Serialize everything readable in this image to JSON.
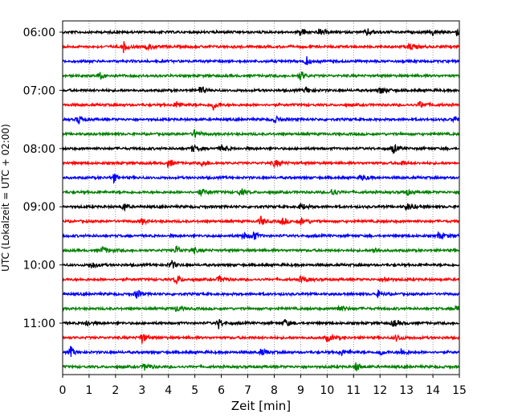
{
  "chart_data": {
    "type": "line",
    "title": "",
    "xlabel": "Zeit  [min]",
    "ylabel": "UTC (Lokalzeit = UTC + 02:00)",
    "xlim": [
      0,
      15
    ],
    "x_ticks": [
      0,
      1,
      2,
      3,
      4,
      5,
      6,
      7,
      8,
      9,
      10,
      11,
      12,
      13,
      14,
      15
    ],
    "x_tick_labels": [
      "0",
      "1",
      "2",
      "3",
      "4",
      "5",
      "6",
      "7",
      "8",
      "9",
      "10",
      "11",
      "12",
      "13",
      "14",
      "15"
    ],
    "y_tick_labels": [
      "06:00",
      "07:00",
      "08:00",
      "09:00",
      "10:00",
      "11:00"
    ],
    "trace_interval_min": 15,
    "first_trace": "06:00",
    "trace_count": 24,
    "grid": "vertical dotted",
    "color_cycle": [
      "#000000",
      "#ff0000",
      "#0000ff",
      "#008000"
    ],
    "series": [
      {
        "start": "06:00",
        "events_min": [
          9.0,
          9.7,
          11.5,
          14.0,
          14.9
        ]
      },
      {
        "start": "06:15",
        "events_min": [
          2.3,
          3.2,
          13.1
        ]
      },
      {
        "start": "06:30",
        "events_min": [
          9.2
        ]
      },
      {
        "start": "06:45",
        "events_min": [
          9.0,
          1.4
        ]
      },
      {
        "start": "07:00",
        "events_min": [
          5.2,
          9.2,
          12.0
        ]
      },
      {
        "start": "07:15",
        "events_min": [
          5.7,
          4.3,
          13.5
        ]
      },
      {
        "start": "07:30",
        "events_min": [
          0.6,
          14.8,
          8.0
        ]
      },
      {
        "start": "07:45",
        "events_min": [
          5.0
        ]
      },
      {
        "start": "08:00",
        "events_min": [
          12.5,
          6.0,
          4.9
        ]
      },
      {
        "start": "08:15",
        "events_min": [
          4.0,
          5.3,
          8.0,
          12.8
        ]
      },
      {
        "start": "08:30",
        "events_min": [
          1.9,
          11.3
        ]
      },
      {
        "start": "08:45",
        "events_min": [
          10.2,
          6.7,
          5.2,
          13.0
        ]
      },
      {
        "start": "09:00",
        "events_min": [
          2.3,
          9.0,
          13.0
        ]
      },
      {
        "start": "09:15",
        "events_min": [
          7.5,
          8.3,
          9.0,
          3.0
        ]
      },
      {
        "start": "09:30",
        "events_min": [
          7.2,
          6.8,
          14.2
        ]
      },
      {
        "start": "09:45",
        "events_min": [
          4.3,
          4.9,
          1.5,
          11.8
        ]
      },
      {
        "start": "10:00",
        "events_min": [
          4.1,
          1.1
        ]
      },
      {
        "start": "10:15",
        "events_min": [
          4.3,
          5.9,
          9.0,
          12.2
        ]
      },
      {
        "start": "10:30",
        "events_min": [
          2.8,
          11.9
        ]
      },
      {
        "start": "10:45",
        "events_min": [
          14.9,
          4.3,
          10.4
        ]
      },
      {
        "start": "11:00",
        "events_min": [
          5.9,
          8.4,
          12.5,
          0.9
        ]
      },
      {
        "start": "11:15",
        "events_min": [
          3.0,
          12.6,
          10.0
        ]
      },
      {
        "start": "11:30",
        "events_min": [
          0.3,
          7.5,
          10.5,
          12.0,
          12.8
        ]
      },
      {
        "start": "11:45",
        "events_min": [
          11.1,
          3.1
        ]
      }
    ]
  }
}
